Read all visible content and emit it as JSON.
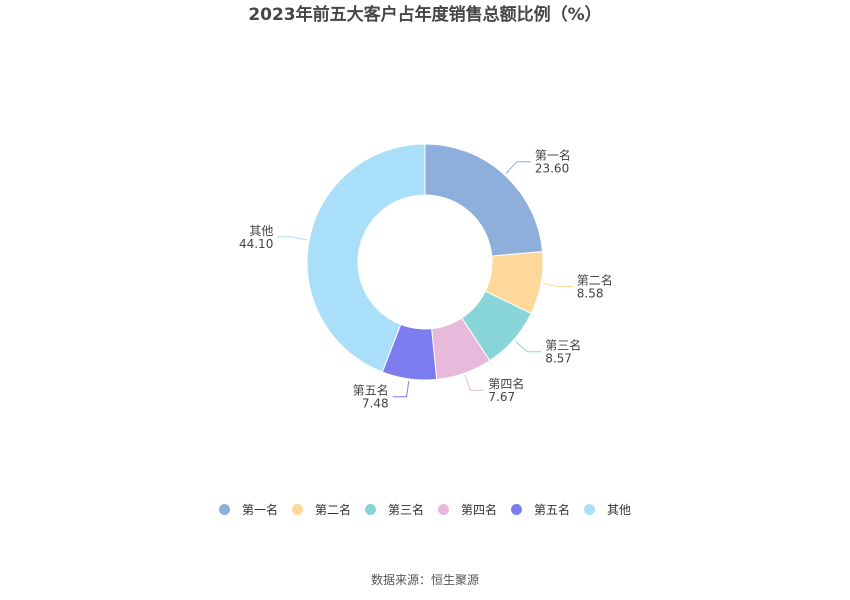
{
  "chart_data": {
    "type": "pie",
    "title": "2023年前五大客户占年度销售总额比例（%）",
    "categories": [
      "第一名",
      "第二名",
      "第三名",
      "第四名",
      "第五名",
      "其他"
    ],
    "values": [
      23.6,
      8.58,
      8.57,
      7.67,
      7.48,
      44.1
    ],
    "value_labels": [
      "23.60",
      "8.58",
      "8.57",
      "7.67",
      "7.48",
      "44.10"
    ],
    "colors": [
      "#8eaedb",
      "#fdd89a",
      "#88d5d8",
      "#e7b9da",
      "#7c7cee",
      "#aadff9"
    ],
    "donut": true,
    "legend_position": "bottom"
  },
  "source": "数据来源：恒生聚源"
}
